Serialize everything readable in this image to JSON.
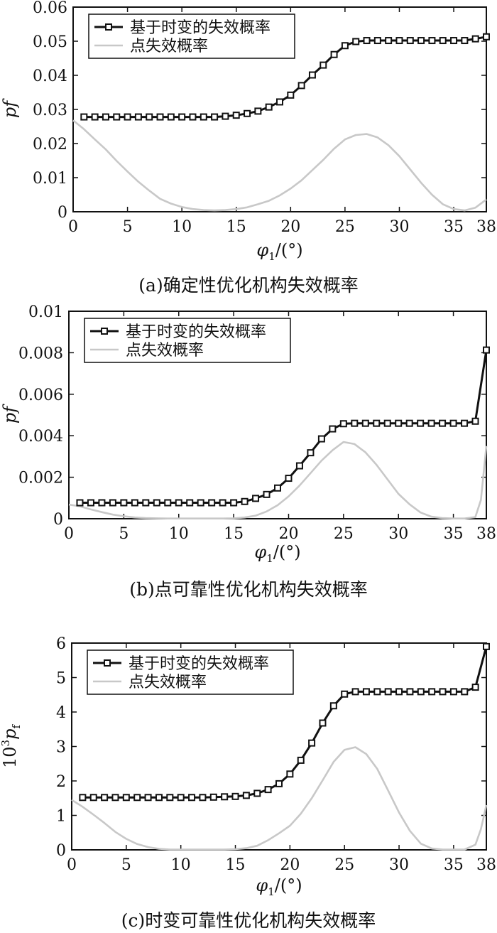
{
  "colors": {
    "time_variant_series": "#111111",
    "point_series": "#c8c8c8",
    "axes": "#111111"
  },
  "chart_data": [
    {
      "type": "line",
      "caption": "(a)确定性优化机构失效概率",
      "xlabel": "φ1/(°)",
      "ylabel": "pf",
      "xlim": [
        0,
        38
      ],
      "ylim": [
        0,
        0.06
      ],
      "xticks": [
        0,
        5,
        10,
        15,
        20,
        25,
        30,
        35,
        38
      ],
      "yticks": [
        0,
        0.01,
        0.02,
        0.03,
        0.04,
        0.05,
        0.06
      ],
      "ytick_labels": [
        "0",
        "0.01",
        "0.02",
        "0.03",
        "0.04",
        "0.05",
        "0.06"
      ],
      "legend_position": "top-left",
      "series": [
        {
          "name": "基于时变的失效概率",
          "marker": "square",
          "x": [
            1,
            2,
            3,
            4,
            5,
            6,
            7,
            8,
            9,
            10,
            11,
            12,
            13,
            14,
            15,
            16,
            17,
            18,
            19,
            20,
            21,
            22,
            23,
            24,
            25,
            26,
            27,
            28,
            29,
            30,
            31,
            32,
            33,
            34,
            35,
            36,
            37,
            38
          ],
          "y": [
            0.0278,
            0.0278,
            0.0278,
            0.0278,
            0.0278,
            0.0278,
            0.0278,
            0.0278,
            0.0278,
            0.0278,
            0.0278,
            0.0278,
            0.0278,
            0.028,
            0.0283,
            0.0288,
            0.0295,
            0.0307,
            0.0322,
            0.0342,
            0.037,
            0.0401,
            0.043,
            0.0461,
            0.0487,
            0.0499,
            0.0502,
            0.0502,
            0.0502,
            0.0502,
            0.0502,
            0.0502,
            0.0502,
            0.0502,
            0.0502,
            0.0502,
            0.0507,
            0.0513
          ]
        },
        {
          "name": "点失效概率",
          "marker": "none",
          "x": [
            0,
            1,
            2,
            3,
            4,
            5,
            6,
            7,
            8,
            9,
            10,
            11,
            12,
            13,
            14,
            15,
            16,
            17,
            18,
            19,
            20,
            21,
            22,
            23,
            24,
            25,
            26,
            27,
            28,
            29,
            30,
            31,
            32,
            33,
            34,
            35,
            36,
            37,
            38
          ],
          "y": [
            0.0268,
            0.0242,
            0.0212,
            0.0183,
            0.0149,
            0.0118,
            0.0088,
            0.0062,
            0.0038,
            0.0024,
            0.0014,
            0.0008,
            0.0005,
            0.0004,
            0.0005,
            0.0008,
            0.0013,
            0.0022,
            0.0032,
            0.0048,
            0.0068,
            0.0092,
            0.0122,
            0.0152,
            0.0185,
            0.0212,
            0.0225,
            0.0228,
            0.0218,
            0.0195,
            0.0163,
            0.0124,
            0.0085,
            0.005,
            0.0022,
            0.0008,
            0.0004,
            0.0012,
            0.0036
          ]
        }
      ]
    },
    {
      "type": "line",
      "caption": "(b)点可靠性优化机构失效概率",
      "xlabel": "φ1/(°)",
      "ylabel": "pf",
      "xlim": [
        0,
        38
      ],
      "ylim": [
        0,
        0.01
      ],
      "xticks": [
        0,
        5,
        10,
        15,
        20,
        25,
        30,
        35,
        38
      ],
      "yticks": [
        0,
        0.002,
        0.004,
        0.006,
        0.008,
        0.01
      ],
      "ytick_labels": [
        "0",
        "0.002",
        "0.004",
        "0.006",
        "0.008",
        "0.01"
      ],
      "legend_position": "top-left",
      "series": [
        {
          "name": "基于时变的失效概率",
          "marker": "square",
          "x": [
            1,
            2,
            3,
            4,
            5,
            6,
            7,
            8,
            9,
            10,
            11,
            12,
            13,
            14,
            15,
            16,
            17,
            18,
            19,
            20,
            21,
            22,
            23,
            24,
            25,
            26,
            27,
            28,
            29,
            30,
            31,
            32,
            33,
            34,
            35,
            36,
            37,
            38
          ],
          "y": [
            0.00077,
            0.00077,
            0.00077,
            0.00077,
            0.00077,
            0.00077,
            0.00077,
            0.00077,
            0.00077,
            0.00077,
            0.00077,
            0.00077,
            0.00077,
            0.00077,
            0.00077,
            0.00083,
            0.00098,
            0.00117,
            0.00148,
            0.00195,
            0.00255,
            0.00318,
            0.00385,
            0.00433,
            0.00458,
            0.0046,
            0.0046,
            0.0046,
            0.0046,
            0.0046,
            0.0046,
            0.0046,
            0.0046,
            0.0046,
            0.0046,
            0.0046,
            0.0047,
            0.00813
          ]
        },
        {
          "name": "点失效概率",
          "marker": "none",
          "x": [
            0,
            1,
            2,
            3,
            4,
            5,
            6,
            7,
            8,
            9,
            10,
            11,
            12,
            13,
            14,
            15,
            16,
            17,
            18,
            19,
            20,
            21,
            22,
            23,
            24,
            25,
            26,
            27,
            28,
            29,
            30,
            31,
            32,
            33,
            34,
            35,
            36,
            37,
            37.5,
            38
          ],
          "y": [
            0.00068,
            0.0006,
            0.00045,
            0.00032,
            0.0002,
            0.00012,
            6e-05,
            3e-05,
            2e-05,
            1e-05,
            1e-05,
            1e-05,
            1e-05,
            1e-05,
            1e-05,
            2e-05,
            6e-05,
            0.00015,
            0.00035,
            0.00065,
            0.00108,
            0.0016,
            0.0022,
            0.0028,
            0.0033,
            0.0037,
            0.0036,
            0.0032,
            0.0026,
            0.0019,
            0.0012,
            0.0007,
            0.0003,
            0.0001,
            3e-05,
            1e-05,
            1e-05,
            8e-05,
            0.0009,
            0.0035
          ]
        }
      ]
    },
    {
      "type": "line",
      "caption": "(c)时变可靠性优化机构失效概率",
      "xlabel": "φ1/(°)",
      "ylabel": "10³pf",
      "xlim": [
        0,
        38
      ],
      "ylim": [
        0,
        6
      ],
      "xticks": [
        0,
        5,
        10,
        15,
        20,
        25,
        30,
        35,
        38
      ],
      "yticks": [
        0,
        1,
        2,
        3,
        4,
        5,
        6
      ],
      "ytick_labels": [
        "0",
        "1",
        "2",
        "3",
        "4",
        "5",
        "6"
      ],
      "legend_position": "top-left",
      "series": [
        {
          "name": "基于时变的失效概率",
          "marker": "square",
          "x": [
            1,
            2,
            3,
            4,
            5,
            6,
            7,
            8,
            9,
            10,
            11,
            12,
            13,
            14,
            15,
            16,
            17,
            18,
            19,
            20,
            21,
            22,
            23,
            24,
            25,
            26,
            27,
            28,
            29,
            30,
            31,
            32,
            33,
            34,
            35,
            36,
            37,
            38
          ],
          "y": [
            1.52,
            1.52,
            1.52,
            1.52,
            1.52,
            1.52,
            1.52,
            1.52,
            1.52,
            1.52,
            1.52,
            1.52,
            1.53,
            1.54,
            1.55,
            1.58,
            1.64,
            1.75,
            1.92,
            2.2,
            2.6,
            3.1,
            3.68,
            4.18,
            4.52,
            4.59,
            4.59,
            4.59,
            4.59,
            4.59,
            4.59,
            4.59,
            4.59,
            4.59,
            4.59,
            4.59,
            4.72,
            5.9
          ]
        },
        {
          "name": "点失效概率",
          "marker": "none",
          "x": [
            0,
            1,
            2,
            3,
            4,
            5,
            6,
            7,
            8,
            9,
            10,
            11,
            12,
            13,
            14,
            15,
            16,
            17,
            18,
            19,
            20,
            21,
            22,
            23,
            24,
            25,
            26,
            27,
            28,
            29,
            30,
            31,
            32,
            33,
            34,
            35,
            36,
            37,
            37.5,
            38
          ],
          "y": [
            1.45,
            1.25,
            1.02,
            0.78,
            0.52,
            0.32,
            0.17,
            0.08,
            0.03,
            0.01,
            0.01,
            0.01,
            0.01,
            0.01,
            0.01,
            0.02,
            0.05,
            0.12,
            0.28,
            0.48,
            0.7,
            1.05,
            1.5,
            2.02,
            2.55,
            2.9,
            2.98,
            2.78,
            2.35,
            1.72,
            1.08,
            0.55,
            0.18,
            0.04,
            0.01,
            0.01,
            0.01,
            0.15,
            0.6,
            1.3
          ]
        }
      ]
    }
  ]
}
